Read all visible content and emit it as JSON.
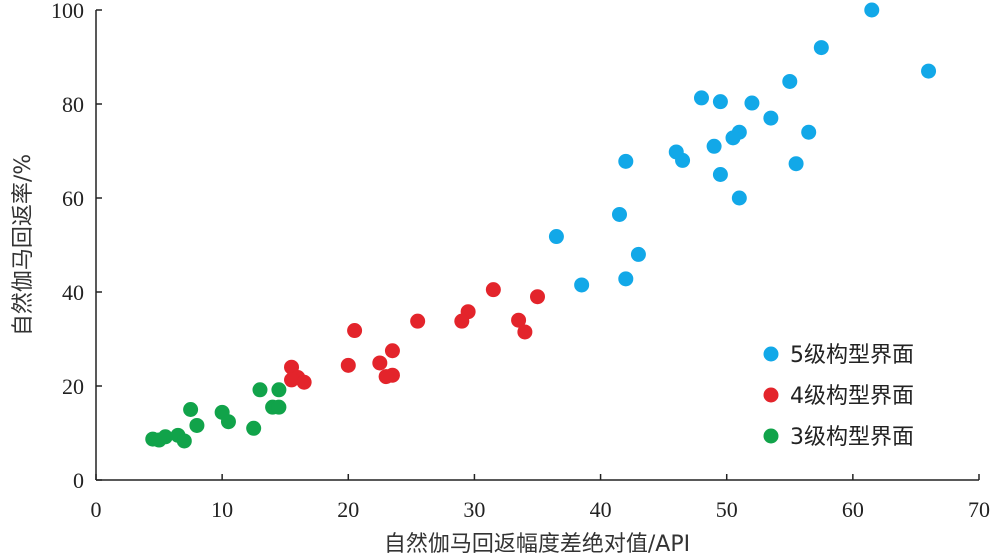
{
  "chart_data": {
    "type": "scatter",
    "xlabel": "自然伽马回返幅度差绝对值/API",
    "ylabel": "自然伽马回返率/%",
    "xlim": [
      0,
      70
    ],
    "ylim": [
      0,
      100
    ],
    "xticks": [
      0,
      10,
      20,
      30,
      40,
      50,
      60,
      70
    ],
    "yticks": [
      0,
      20,
      40,
      60,
      80,
      100
    ],
    "grid": false,
    "legend_position": "bottom-right",
    "series": [
      {
        "name": "5级构型界面",
        "color": "#12a8e8",
        "points": [
          [
            61.5,
            100
          ],
          [
            57.5,
            92
          ],
          [
            66,
            87
          ],
          [
            55,
            84.8
          ],
          [
            48,
            81.3
          ],
          [
            49.5,
            80.5
          ],
          [
            52,
            80.2
          ],
          [
            53.5,
            77
          ],
          [
            56.5,
            74
          ],
          [
            51,
            74
          ],
          [
            50.5,
            72.8
          ],
          [
            49,
            71
          ],
          [
            46,
            69.8
          ],
          [
            46.5,
            68
          ],
          [
            42,
            67.8
          ],
          [
            55.5,
            67.3
          ],
          [
            49.5,
            65
          ],
          [
            51,
            60
          ],
          [
            41.5,
            56.5
          ],
          [
            36.5,
            51.8
          ],
          [
            43,
            48
          ],
          [
            38.5,
            41.5
          ],
          [
            42,
            42.8
          ]
        ]
      },
      {
        "name": "4级构型界面",
        "color": "#e3242b",
        "points": [
          [
            31.5,
            40.5
          ],
          [
            35,
            39
          ],
          [
            29.5,
            35.8
          ],
          [
            25.5,
            33.8
          ],
          [
            29,
            33.8
          ],
          [
            33.5,
            34
          ],
          [
            20.5,
            31.8
          ],
          [
            34,
            31.5
          ],
          [
            23.5,
            27.5
          ],
          [
            20,
            24.4
          ],
          [
            22.5,
            24.9
          ],
          [
            15.5,
            24
          ],
          [
            23.5,
            22.3
          ],
          [
            23,
            22
          ],
          [
            16,
            21.8
          ],
          [
            15.5,
            21.3
          ],
          [
            16.5,
            20.8
          ]
        ]
      },
      {
        "name": "3级构型界面",
        "color": "#11a34a",
        "points": [
          [
            13,
            19.2
          ],
          [
            14.5,
            19.2
          ],
          [
            14,
            15.5
          ],
          [
            14.5,
            15.5
          ],
          [
            7.5,
            15
          ],
          [
            10,
            14.4
          ],
          [
            10.5,
            12.4
          ],
          [
            8,
            11.6
          ],
          [
            12.5,
            11
          ],
          [
            6.5,
            9.5
          ],
          [
            5.5,
            9.2
          ],
          [
            4.5,
            8.7
          ],
          [
            5,
            8.5
          ],
          [
            7,
            8.3
          ]
        ]
      }
    ]
  }
}
